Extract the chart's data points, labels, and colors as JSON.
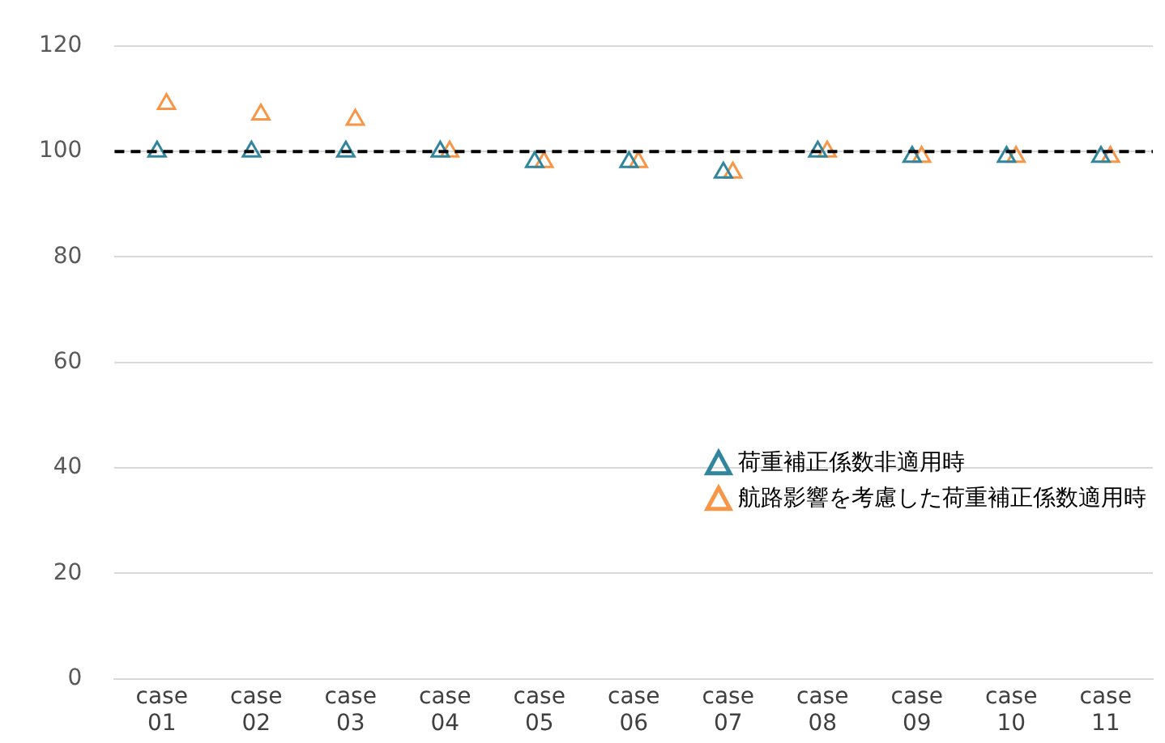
{
  "chart_data": {
    "type": "scatter",
    "categories": [
      "case 01",
      "case 02",
      "case 03",
      "case 04",
      "case 05",
      "case 06",
      "case 07",
      "case 08",
      "case 09",
      "case 10",
      "case 11"
    ],
    "series": [
      {
        "name": "荷重補正係数非適用時",
        "color": "#31859c",
        "values": [
          100,
          100,
          100,
          100,
          98,
          98,
          96,
          100,
          99,
          99,
          99
        ]
      },
      {
        "name": "航路影響を考慮した荷重補正係数適用時",
        "color": "#f79646",
        "values": [
          109,
          107,
          106,
          100,
          98,
          98,
          96,
          100,
          99,
          99,
          99
        ]
      }
    ],
    "ylim": [
      0,
      120
    ],
    "yticks": [
      0,
      20,
      40,
      60,
      80,
      100,
      120
    ],
    "grid": "y",
    "marker": "triangle",
    "legend": "bottom right",
    "ref_lines": [
      {
        "axis": "y",
        "value": 100,
        "color": "#000000",
        "line_style": "dashed"
      }
    ]
  }
}
